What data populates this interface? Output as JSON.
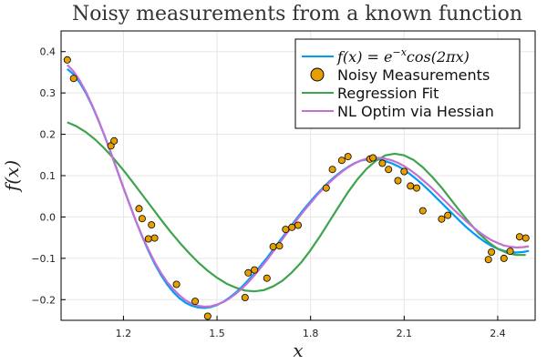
{
  "chart_data": {
    "type": "line",
    "title": "Noisy measurements from a known function",
    "xlabel": "x",
    "ylabel": "f(x)",
    "xlim": [
      1.0,
      2.52
    ],
    "ylim": [
      -0.25,
      0.45
    ],
    "xticks": [
      1.2,
      1.5,
      1.8,
      2.1,
      2.4
    ],
    "xtick_labels": [
      "1.2",
      "1.5",
      "1.8",
      "2.1",
      "2.4"
    ],
    "yticks": [
      -0.2,
      -0.1,
      0.0,
      0.1,
      0.2,
      0.3,
      0.4
    ],
    "ytick_labels": [
      "−0.2",
      "−0.1",
      "0.0",
      "0.1",
      "0.2",
      "0.3",
      "0.4"
    ],
    "grid": true,
    "legend_position": "top-right",
    "series": [
      {
        "name": "f(x) = e^{-x}cos(2πx)",
        "kind": "line",
        "color": "#009AFA",
        "x": [
          1.02,
          1.04,
          1.06,
          1.08,
          1.1,
          1.12,
          1.14,
          1.16,
          1.18,
          1.2,
          1.22,
          1.24,
          1.26,
          1.28,
          1.3,
          1.32,
          1.34,
          1.36,
          1.38,
          1.4,
          1.42,
          1.44,
          1.46,
          1.48,
          1.5,
          1.52,
          1.54,
          1.56,
          1.58,
          1.6,
          1.62,
          1.64,
          1.66,
          1.68,
          1.7,
          1.72,
          1.74,
          1.76,
          1.78,
          1.8,
          1.82,
          1.84,
          1.86,
          1.88,
          1.9,
          1.92,
          1.94,
          1.96,
          1.98,
          2.0,
          2.02,
          2.04,
          2.06,
          2.08,
          2.1,
          2.12,
          2.14,
          2.16,
          2.18,
          2.2,
          2.22,
          2.24,
          2.26,
          2.28,
          2.3,
          2.32,
          2.34,
          2.36,
          2.38,
          2.4,
          2.42,
          2.44,
          2.46,
          2.48,
          2.5
        ],
        "y": [
          0.358,
          0.345,
          0.325,
          0.299,
          0.268,
          0.233,
          0.195,
          0.155,
          0.113,
          0.071,
          0.03,
          -0.01,
          -0.047,
          -0.082,
          -0.113,
          -0.14,
          -0.163,
          -0.182,
          -0.197,
          -0.208,
          -0.215,
          -0.219,
          -0.22,
          -0.218,
          -0.213,
          -0.205,
          -0.195,
          -0.183,
          -0.169,
          -0.153,
          -0.136,
          -0.118,
          -0.099,
          -0.079,
          -0.059,
          -0.039,
          -0.019,
          0.001,
          0.02,
          0.038,
          0.055,
          0.071,
          0.086,
          0.099,
          0.111,
          0.121,
          0.13,
          0.136,
          0.139,
          0.14,
          0.139,
          0.135,
          0.13,
          0.123,
          0.114,
          0.103,
          0.091,
          0.078,
          0.064,
          0.049,
          0.034,
          0.019,
          0.004,
          -0.011,
          -0.025,
          -0.038,
          -0.05,
          -0.061,
          -0.07,
          -0.077,
          -0.082,
          -0.085,
          -0.086,
          -0.085,
          -0.082
        ]
      },
      {
        "name": "Noisy Measurements",
        "kind": "scatter",
        "color": "#E69F00",
        "x": [
          1.02,
          1.04,
          1.16,
          1.17,
          1.25,
          1.26,
          1.28,
          1.29,
          1.3,
          1.37,
          1.43,
          1.47,
          1.59,
          1.6,
          1.62,
          1.66,
          1.68,
          1.7,
          1.72,
          1.74,
          1.76,
          1.85,
          1.87,
          1.9,
          1.92,
          1.99,
          2.0,
          2.03,
          2.05,
          2.08,
          2.1,
          2.12,
          2.14,
          2.16,
          2.22,
          2.24,
          2.37,
          2.38,
          2.42,
          2.44,
          2.47,
          2.49
        ],
        "y": [
          0.38,
          0.335,
          0.172,
          0.184,
          0.02,
          -0.004,
          -0.053,
          -0.019,
          -0.051,
          -0.163,
          -0.204,
          -0.24,
          -0.195,
          -0.135,
          -0.128,
          -0.148,
          -0.072,
          -0.07,
          -0.03,
          -0.025,
          -0.02,
          0.07,
          0.115,
          0.137,
          0.146,
          0.14,
          0.143,
          0.13,
          0.115,
          0.088,
          0.11,
          0.075,
          0.07,
          0.015,
          -0.005,
          0.004,
          -0.103,
          -0.085,
          -0.1,
          -0.083,
          -0.048,
          -0.051
        ]
      },
      {
        "name": "Regression Fit",
        "kind": "line",
        "color": "#3DA44D",
        "x": [
          1.02,
          1.05,
          1.08,
          1.11,
          1.14,
          1.17,
          1.2,
          1.23,
          1.26,
          1.29,
          1.32,
          1.35,
          1.38,
          1.41,
          1.44,
          1.47,
          1.5,
          1.53,
          1.56,
          1.59,
          1.62,
          1.65,
          1.68,
          1.71,
          1.74,
          1.77,
          1.8,
          1.83,
          1.86,
          1.89,
          1.92,
          1.95,
          1.98,
          2.01,
          2.04,
          2.07,
          2.1,
          2.13,
          2.16,
          2.19,
          2.22,
          2.25,
          2.28,
          2.31,
          2.34,
          2.37,
          2.4,
          2.43,
          2.46,
          2.49
        ],
        "y": [
          0.229,
          0.219,
          0.205,
          0.187,
          0.165,
          0.14,
          0.113,
          0.084,
          0.054,
          0.024,
          -0.006,
          -0.035,
          -0.062,
          -0.087,
          -0.11,
          -0.13,
          -0.147,
          -0.161,
          -0.171,
          -0.178,
          -0.18,
          -0.177,
          -0.168,
          -0.154,
          -0.134,
          -0.11,
          -0.08,
          -0.047,
          -0.011,
          0.025,
          0.06,
          0.091,
          0.117,
          0.136,
          0.149,
          0.153,
          0.149,
          0.138,
          0.12,
          0.097,
          0.071,
          0.042,
          0.013,
          -0.015,
          -0.04,
          -0.061,
          -0.077,
          -0.087,
          -0.092,
          -0.092
        ]
      },
      {
        "name": "NL Optim via Hessian",
        "kind": "line",
        "color": "#C271D2",
        "x": [
          1.02,
          1.04,
          1.06,
          1.08,
          1.1,
          1.12,
          1.14,
          1.16,
          1.18,
          1.2,
          1.22,
          1.24,
          1.26,
          1.28,
          1.3,
          1.32,
          1.34,
          1.36,
          1.38,
          1.4,
          1.42,
          1.44,
          1.46,
          1.48,
          1.5,
          1.52,
          1.54,
          1.56,
          1.58,
          1.6,
          1.62,
          1.64,
          1.66,
          1.68,
          1.7,
          1.72,
          1.74,
          1.76,
          1.78,
          1.8,
          1.82,
          1.84,
          1.86,
          1.88,
          1.9,
          1.92,
          1.94,
          1.96,
          1.98,
          2.0,
          2.02,
          2.04,
          2.06,
          2.08,
          2.1,
          2.12,
          2.14,
          2.16,
          2.18,
          2.2,
          2.22,
          2.24,
          2.26,
          2.28,
          2.3,
          2.32,
          2.34,
          2.36,
          2.38,
          2.4,
          2.42,
          2.44,
          2.46,
          2.48,
          2.5
        ],
        "y": [
          0.368,
          0.352,
          0.33,
          0.302,
          0.27,
          0.234,
          0.195,
          0.154,
          0.112,
          0.07,
          0.029,
          -0.01,
          -0.046,
          -0.079,
          -0.109,
          -0.135,
          -0.157,
          -0.175,
          -0.19,
          -0.202,
          -0.21,
          -0.215,
          -0.217,
          -0.216,
          -0.212,
          -0.206,
          -0.197,
          -0.186,
          -0.173,
          -0.158,
          -0.141,
          -0.123,
          -0.104,
          -0.084,
          -0.064,
          -0.043,
          -0.023,
          -0.003,
          0.016,
          0.034,
          0.052,
          0.068,
          0.083,
          0.097,
          0.109,
          0.12,
          0.129,
          0.136,
          0.141,
          0.143,
          0.143,
          0.141,
          0.137,
          0.131,
          0.123,
          0.113,
          0.102,
          0.089,
          0.076,
          0.062,
          0.047,
          0.032,
          0.017,
          0.003,
          -0.011,
          -0.024,
          -0.036,
          -0.047,
          -0.056,
          -0.063,
          -0.069,
          -0.072,
          -0.074,
          -0.073,
          -0.071
        ]
      }
    ]
  }
}
